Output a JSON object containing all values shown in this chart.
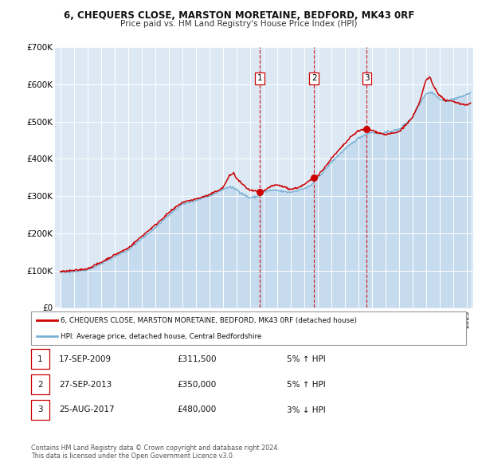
{
  "title": "6, CHEQUERS CLOSE, MARSTON MORETAINE, BEDFORD, MK43 0RF",
  "subtitle": "Price paid vs. HM Land Registry's House Price Index (HPI)",
  "legend_label_red": "6, CHEQUERS CLOSE, MARSTON MORETAINE, BEDFORD, MK43 0RF (detached house)",
  "legend_label_blue": "HPI: Average price, detached house, Central Bedfordshire",
  "footnote": "Contains HM Land Registry data © Crown copyright and database right 2024.\nThis data is licensed under the Open Government Licence v3.0.",
  "sales": [
    {
      "num": "1",
      "date": "17-SEP-2009",
      "price": "£311,500",
      "pct_dir": "5% ↑ HPI",
      "year": 2009.71,
      "value": 311500
    },
    {
      "num": "2",
      "date": "27-SEP-2013",
      "price": "£350,000",
      "pct_dir": "5% ↑ HPI",
      "year": 2013.74,
      "value": 350000
    },
    {
      "num": "3",
      "date": "25-AUG-2017",
      "price": "£480,000",
      "pct_dir": "3% ↓ HPI",
      "year": 2017.64,
      "value": 480000
    }
  ],
  "ylim": [
    0,
    700000
  ],
  "yticks": [
    0,
    100000,
    200000,
    300000,
    400000,
    500000,
    600000,
    700000
  ],
  "ytick_labels": [
    "£0",
    "£100K",
    "£200K",
    "£300K",
    "£400K",
    "£500K",
    "£600K",
    "£700K"
  ],
  "xlim_start": 1994.6,
  "xlim_end": 2025.5,
  "bg_color": "#dce9f5",
  "red_color": "#cc0000",
  "blue_color": "#7ab0d4",
  "blue_fill": "#b8d4ea"
}
